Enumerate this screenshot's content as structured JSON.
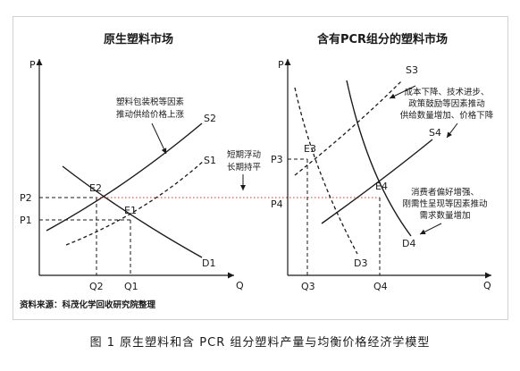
{
  "left_panel": {
    "title": "原生塑料市场",
    "axis_y": "P",
    "axis_x": "Q",
    "curves": {
      "s2": "S2",
      "s1": "S1",
      "d1": "D1"
    },
    "points": {
      "e2": "E2",
      "e1": "E1"
    },
    "y_ticks": {
      "p2": "P2",
      "p1": "P1"
    },
    "x_ticks": {
      "q2": "Q2",
      "q1": "Q1"
    },
    "annotation": [
      "塑料包装税等因素",
      "推动供给价格上涨"
    ]
  },
  "middle_note": [
    "短期浮动",
    "长期持平"
  ],
  "right_panel": {
    "title": "含有PCR组分的塑料市场",
    "axis_y": "P",
    "axis_x": "Q",
    "curves": {
      "s3": "S3",
      "s4": "S4",
      "d3": "D3",
      "d4": "D4"
    },
    "points": {
      "e3": "E3",
      "e4": "E4"
    },
    "y_ticks": {
      "p3": "P3",
      "p4": "P4"
    },
    "x_ticks": {
      "q3": "Q3",
      "q4": "Q4"
    },
    "annotation_top": [
      "成本下降、技术进步、",
      "政策鼓励等因素推动",
      "供给数量增加、价格下降"
    ],
    "annotation_bottom": [
      "消费者偏好增强、",
      "刚需性呈现等因素推动",
      "需求数量增加"
    ]
  },
  "source": "资料来源：科茂化学回收研究院整理",
  "caption": "图 1  原生塑料和含 PCR 组分塑料产量与均衡价格经济学模型",
  "colors": {
    "line": "#1a1a1a",
    "guide_red": "#e03030",
    "panel_border": "#d0d0d0"
  }
}
